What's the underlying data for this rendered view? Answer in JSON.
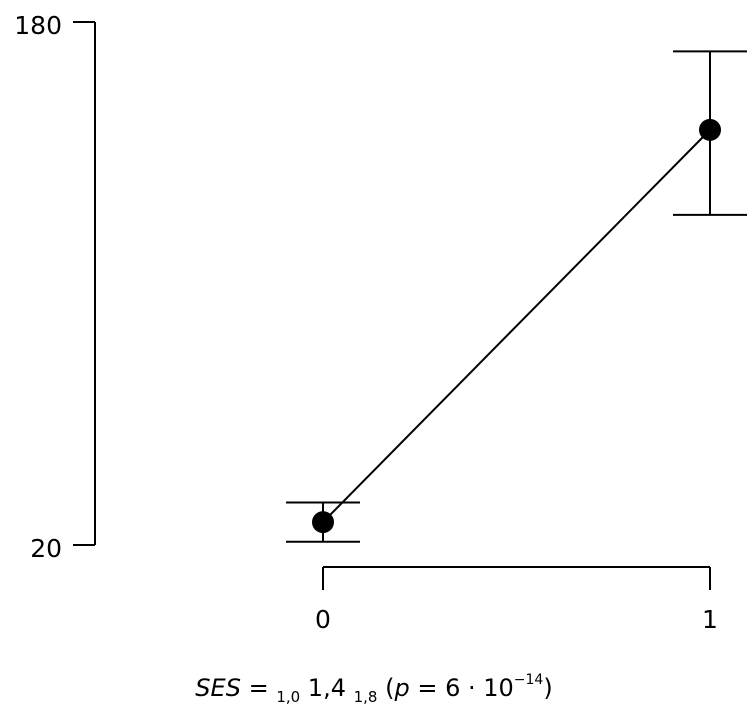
{
  "chart_data": {
    "type": "line",
    "x": [
      0,
      1
    ],
    "y": [
      27,
      147
    ],
    "error_low": [
      21,
      121
    ],
    "error_high": [
      33,
      171
    ],
    "ylim": [
      20,
      180
    ],
    "y_ticks": [
      "180",
      "20"
    ],
    "x_ticks": [
      "0",
      "1"
    ],
    "grid": false
  },
  "caption": {
    "lhs": "SES",
    "eq": " = ",
    "lower_ci": "1,0",
    "estimate": " 1,4 ",
    "upper_ci": "1,8",
    "open": " (",
    "p_label": "p",
    "p_eq": " = 6 · 10",
    "p_exp": "−14",
    "close": ")"
  }
}
